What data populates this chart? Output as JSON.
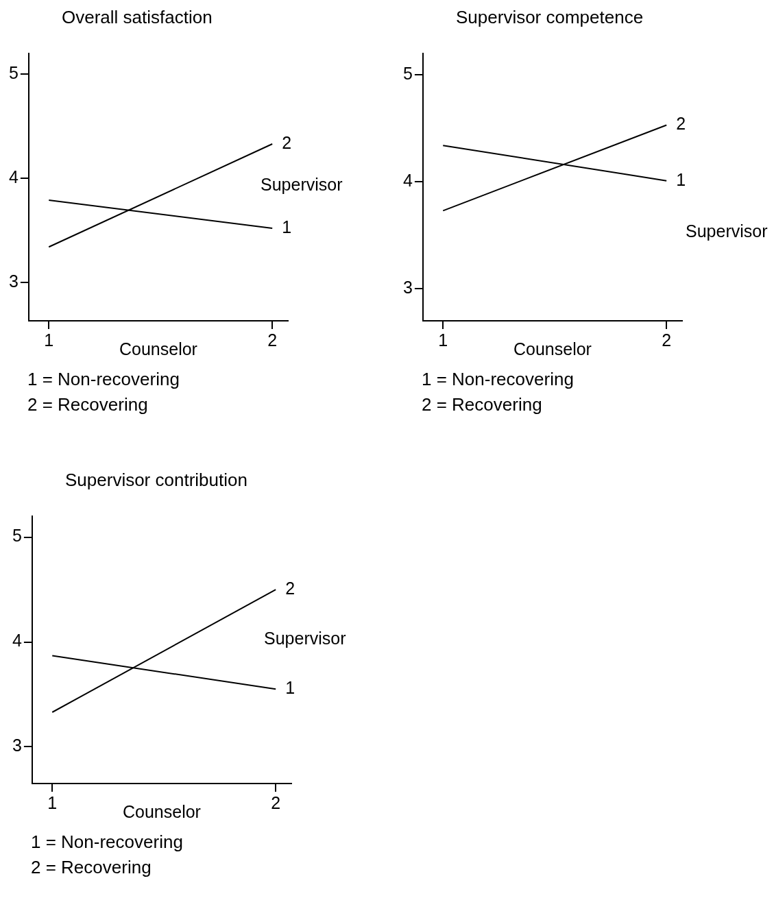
{
  "chart_data": [
    {
      "type": "line",
      "title": "Overall satisfaction",
      "xlabel": "Counselor",
      "legend_title": "Supervisor",
      "categories": [
        "1",
        "2"
      ],
      "ylim": [
        2.63,
        5.2
      ],
      "yticks": [
        3,
        4,
        5
      ],
      "grid": false,
      "series": [
        {
          "name": "2",
          "color": "#000000",
          "values": [
            3.34,
            4.33
          ]
        },
        {
          "name": "1",
          "color": "#000000",
          "values": [
            3.79,
            3.52
          ]
        }
      ],
      "annotations": [
        "1 = Non-recovering",
        "2 = Recovering"
      ]
    },
    {
      "type": "line",
      "title": "Supervisor competence",
      "xlabel": "Counselor",
      "legend_title": "Supervisor",
      "categories": [
        "1",
        "2"
      ],
      "ylim": [
        2.7,
        5.2
      ],
      "yticks": [
        3,
        4,
        5
      ],
      "grid": false,
      "series": [
        {
          "name": "2",
          "color": "#000000",
          "values": [
            3.73,
            4.53
          ]
        },
        {
          "name": "1",
          "color": "#000000",
          "values": [
            4.34,
            4.01
          ]
        }
      ],
      "annotations": [
        "1 = Non-recovering",
        "2 = Recovering"
      ]
    },
    {
      "type": "line",
      "title": "Supervisor contribution",
      "xlabel": "Counselor",
      "legend_title": "Supervisor",
      "categories": [
        "1",
        "2"
      ],
      "ylim": [
        2.65,
        5.2
      ],
      "yticks": [
        3,
        4,
        5
      ],
      "grid": false,
      "series": [
        {
          "name": "2",
          "color": "#000000",
          "values": [
            3.33,
            4.5
          ]
        },
        {
          "name": "1",
          "color": "#000000",
          "values": [
            3.87,
            3.55
          ]
        }
      ],
      "annotations": [
        "1 = Non-recovering",
        "2 = Recovering"
      ]
    }
  ]
}
